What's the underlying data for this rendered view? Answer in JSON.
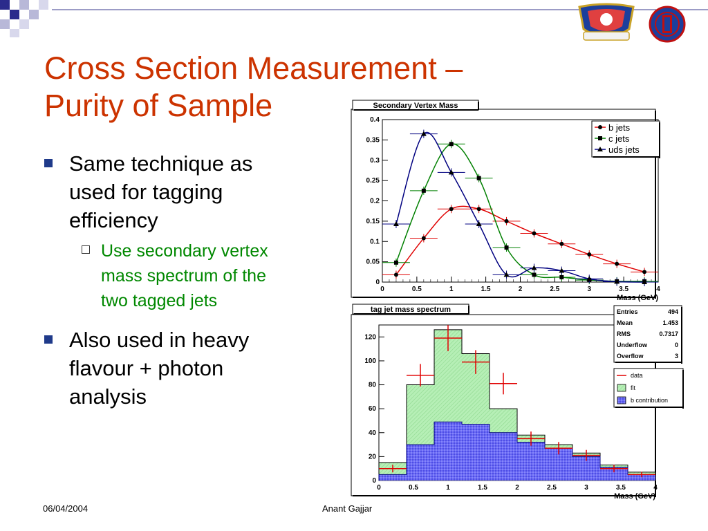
{
  "slide": {
    "title_line1": "Cross Section Measurement –",
    "title_line2": "Purity of Sample",
    "bullets": [
      {
        "text_lines": [
          "Same technique as",
          "used for tagging",
          "efficiency"
        ],
        "sub": {
          "text_lines": [
            "Use secondary vertex",
            "mass spectrum of the",
            "two tagged jets"
          ]
        }
      },
      {
        "text_lines": [
          "Also used in heavy",
          "flavour + photon",
          "analysis"
        ]
      }
    ],
    "footer": {
      "date": "06/04/2004",
      "author": "Anant Gajjar"
    },
    "colors": {
      "title": "#cc3300",
      "sub_bullet": "#008800",
      "bullet_mark": "#1f3a8a"
    },
    "logos": [
      {
        "icon": "university-crest-icon"
      },
      {
        "icon": "cdf-logo-icon"
      }
    ]
  },
  "chart_data": [
    {
      "type": "line",
      "title": "Secondary Vertex Mass",
      "xlabel": "Mass (GeV)",
      "ylabel": "",
      "xlim": [
        0,
        4
      ],
      "ylim": [
        0,
        0.4
      ],
      "xticks": [
        "0",
        "0.5",
        "1",
        "1.5",
        "2",
        "2.5",
        "3",
        "3.5",
        "4"
      ],
      "yticks": [
        "0",
        "0.05",
        "0.1",
        "0.15",
        "0.2",
        "0.25",
        "0.3",
        "0.35",
        "0.4"
      ],
      "legend_position": "top-right",
      "series": [
        {
          "name": "b jets",
          "marker": "circle",
          "color": "#e00000",
          "x": [
            0.2,
            0.6,
            1.0,
            1.4,
            1.8,
            2.2,
            2.6,
            3.0,
            3.4,
            3.8
          ],
          "y": [
            0.018,
            0.108,
            0.18,
            0.18,
            0.15,
            0.12,
            0.094,
            0.068,
            0.045,
            0.025
          ]
        },
        {
          "name": "c jets",
          "marker": "square",
          "color": "#008000",
          "x": [
            0.2,
            0.6,
            1.0,
            1.4,
            1.8,
            2.2,
            2.6,
            3.0,
            3.4,
            3.8
          ],
          "y": [
            0.048,
            0.225,
            0.34,
            0.256,
            0.085,
            0.018,
            0.012,
            0.005,
            0.002,
            0.002
          ]
        },
        {
          "name": "uds jets",
          "marker": "triangle",
          "color": "#000080",
          "x": [
            0.2,
            0.6,
            1.0,
            1.4,
            1.8,
            2.2,
            2.6,
            3.0,
            3.4,
            3.8
          ],
          "y": [
            0.143,
            0.365,
            0.27,
            0.143,
            0.018,
            0.035,
            0.028,
            0.008,
            0.001,
            0.0
          ]
        }
      ]
    },
    {
      "type": "bar",
      "title": "tag jet mass spectrum",
      "xlabel": "Mass (GeV)",
      "ylabel": "",
      "xlim": [
        0,
        4
      ],
      "ylim": [
        0,
        130
      ],
      "xticks": [
        "0",
        "0.5",
        "1",
        "1.5",
        "2",
        "2.5",
        "3",
        "3.5",
        "4"
      ],
      "yticks": [
        "0",
        "20",
        "40",
        "60",
        "80",
        "100",
        "120"
      ],
      "bin_edges": [
        0,
        0.4,
        0.8,
        1.2,
        1.6,
        2.0,
        2.4,
        2.8,
        3.2,
        3.6,
        4.0
      ],
      "series": [
        {
          "name": "fit",
          "color": "#a8e6a8",
          "values": [
            15,
            80,
            126,
            106,
            60,
            38,
            30,
            23,
            13,
            7
          ]
        },
        {
          "name": "b contribution",
          "color": "#5b5bef",
          "values": [
            5,
            30,
            49,
            47,
            40,
            32,
            27,
            20,
            11,
            5
          ]
        },
        {
          "name": "data",
          "color": "#e00000",
          "x": [
            0.2,
            0.6,
            1.0,
            1.4,
            1.8,
            2.2,
            2.6,
            3.0,
            3.4,
            3.8
          ],
          "y": [
            10,
            88,
            119,
            99,
            81,
            35,
            27,
            21,
            10,
            5
          ]
        }
      ],
      "stats": [
        {
          "label": "Entries",
          "value": "494"
        },
        {
          "label": "Mean",
          "value": "1.453"
        },
        {
          "label": "RMS",
          "value": "0.7317"
        },
        {
          "label": "Underflow",
          "value": "0"
        },
        {
          "label": "Overflow",
          "value": "3"
        }
      ],
      "legend_position": "right"
    }
  ]
}
